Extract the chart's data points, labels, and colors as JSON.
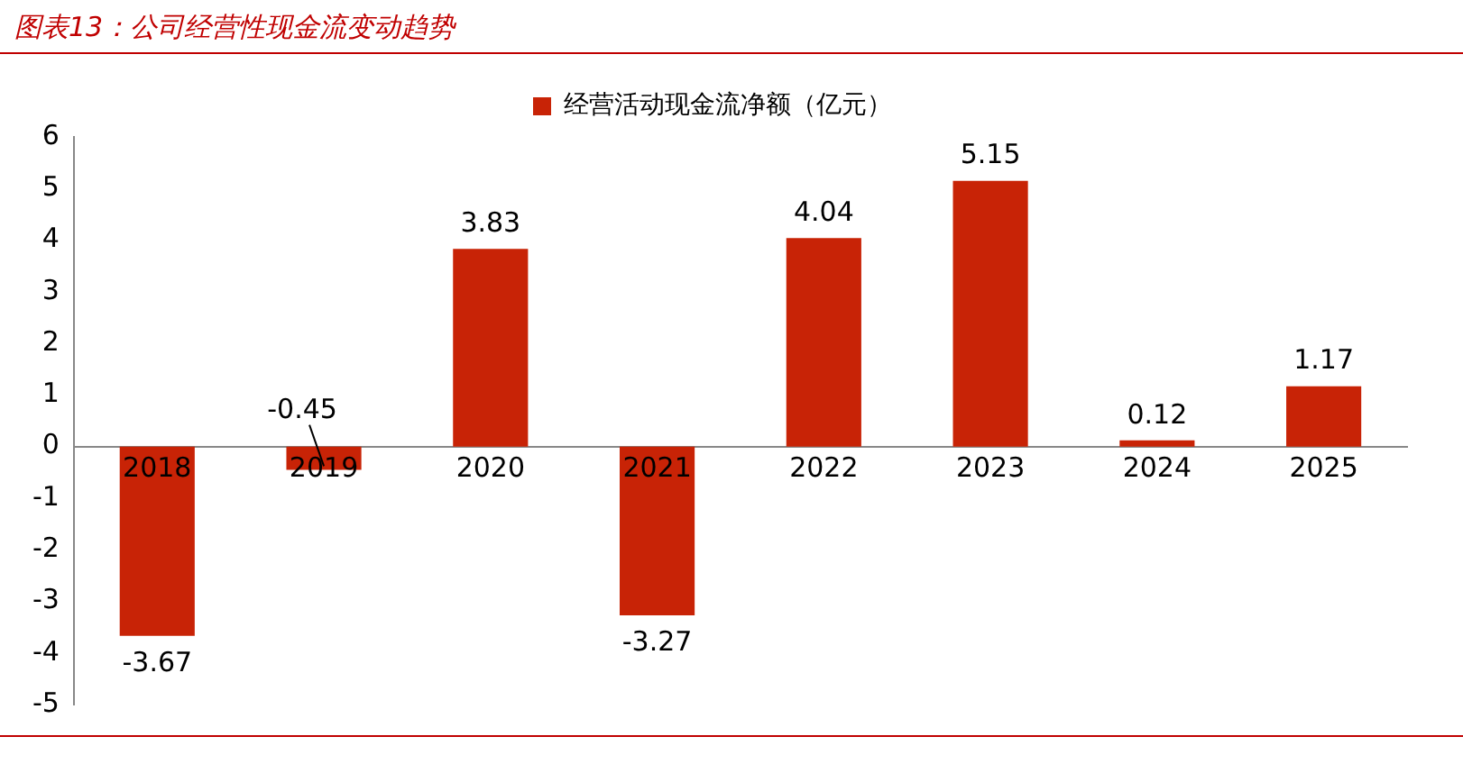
{
  "chart_data": {
    "type": "bar",
    "title": "图表13：公司经营性现金流变动趋势",
    "categories": [
      "2018",
      "2019",
      "2020",
      "2021",
      "2022",
      "2023",
      "2024",
      "2025"
    ],
    "series": [
      {
        "name": "经营活动现金流净额（亿元）",
        "color": "#c82306",
        "values": [
          -3.67,
          -0.45,
          3.83,
          -3.27,
          4.04,
          5.15,
          0.12,
          1.17
        ]
      }
    ],
    "ylim": [
      -5,
      6
    ],
    "yticks": [
      -5,
      -4,
      -3,
      -2,
      -1,
      0,
      1,
      2,
      3,
      4,
      5,
      6
    ],
    "grid": false,
    "legend": "top",
    "data_labels": true
  }
}
